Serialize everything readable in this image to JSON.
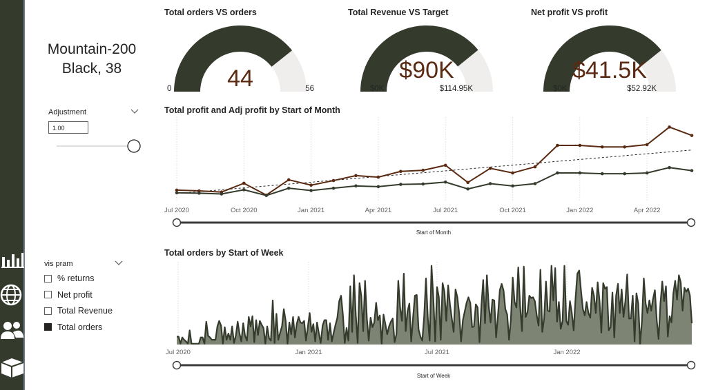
{
  "product": {
    "title_line1": "Mountain-200",
    "title_line2": "Black, 38"
  },
  "adjustment": {
    "label": "Adjustment",
    "value": "1.00",
    "slider_fraction": 1.0
  },
  "vis_param": {
    "label": "vis pram",
    "options": [
      {
        "label": "% returns",
        "checked": false
      },
      {
        "label": "Net profit",
        "checked": false
      },
      {
        "label": "Total Revenue",
        "checked": false
      },
      {
        "label": "Total orders",
        "checked": true
      }
    ]
  },
  "nav_icons": [
    "bar-chart-icon",
    "globe-icon",
    "users-icon",
    "box-icon"
  ],
  "colors": {
    "sidebar": "#343b2c",
    "dark_green": "#343b2c",
    "brown": "#5a2a12",
    "light_gray": "#efeeed",
    "area": "#7d8474"
  },
  "gauges": [
    {
      "title": "Total orders VS orders",
      "value": 44,
      "value_label": "44",
      "min": 0,
      "max": 56,
      "min_label": "0",
      "max_label": "56"
    },
    {
      "title": "Total Revenue VS Target",
      "value": 90,
      "value_label": "$90K",
      "min": 0,
      "max": 114.95,
      "min_label": "$0K",
      "max_label": "$114.95K"
    },
    {
      "title": "Net profit VS profit",
      "value": 41.5,
      "value_label": "$41.5K",
      "min": 0,
      "max": 52.92,
      "min_label": "$0K",
      "max_label": "$52.92K"
    }
  ],
  "chart_data": [
    {
      "type": "line",
      "title": "Total profit and Adj profit by Start of Month",
      "xlabel": "Start of Month",
      "ylabel": "",
      "x": [
        "2020-07",
        "2020-08",
        "2020-09",
        "2020-10",
        "2020-11",
        "2020-12",
        "2021-01",
        "2021-02",
        "2021-03",
        "2021-04",
        "2021-05",
        "2021-06",
        "2021-07",
        "2021-08",
        "2021-09",
        "2021-10",
        "2021-11",
        "2021-12",
        "2022-01",
        "2022-02",
        "2022-03",
        "2022-04",
        "2022-05",
        "2022-06"
      ],
      "x_ticks": [
        "Jul 2020",
        "Oct 2020",
        "Jan 2021",
        "Apr 2021",
        "Jul 2021",
        "Oct 2021",
        "Jan 2022",
        "Apr 2022"
      ],
      "series": [
        {
          "color": "#5a2a12",
          "values": [
            14.5,
            13.5,
            12,
            23.5,
            8,
            28,
            21,
            27,
            33.5,
            31.5,
            39,
            40.5,
            47,
            24.5,
            43,
            37,
            45,
            73,
            73,
            71,
            71,
            74,
            97,
            86
          ]
        },
        {
          "color": "#343b2c",
          "values": [
            11,
            10.5,
            9.5,
            15,
            7.5,
            17,
            14,
            17,
            20,
            19,
            22,
            22.5,
            25,
            16,
            23,
            20,
            23,
            37,
            37,
            36,
            36,
            37,
            44,
            40
          ]
        }
      ],
      "trend_line": {
        "dashed": true,
        "start": 10,
        "end": 67
      },
      "ylim": [
        0,
        110
      ],
      "grid": "vertical dotted"
    },
    {
      "type": "area",
      "title": "Total orders by Start of Week",
      "xlabel": "Start of Week",
      "ylabel": "",
      "x_ticks": [
        "Jul 2020",
        "Jan 2021",
        "Jul 2021",
        "Jan 2022"
      ],
      "values": [
        10,
        10,
        1,
        9,
        6,
        4,
        1,
        18,
        1,
        1,
        1,
        1,
        1,
        9,
        9,
        1,
        29,
        11,
        9,
        6,
        6,
        6,
        23,
        30,
        24,
        1,
        22,
        6,
        14,
        6,
        23,
        2,
        11,
        29,
        14,
        4,
        27,
        11,
        5,
        35,
        23,
        36,
        3,
        31,
        12,
        30,
        25,
        21,
        1,
        23,
        8,
        5,
        56,
        2,
        39,
        6,
        15,
        23,
        45,
        30,
        1,
        28,
        13,
        35,
        9,
        26,
        35,
        28,
        27,
        30,
        5,
        22,
        40,
        16,
        26,
        4,
        28,
        14,
        2,
        24,
        31,
        31,
        6,
        27,
        4,
        15,
        25,
        34,
        55,
        62,
        38,
        2,
        21,
        5,
        74,
        16,
        88,
        37,
        2,
        78,
        61,
        17,
        81,
        33,
        5,
        34,
        22,
        28,
        53,
        31,
        37,
        1,
        38,
        26,
        13,
        23,
        29,
        33,
        3,
        13,
        81,
        47,
        30,
        90,
        17,
        42,
        52,
        4,
        34,
        62,
        63,
        19,
        10,
        5,
        35,
        84,
        34,
        5,
        100,
        59,
        4,
        73,
        60,
        6,
        78,
        67,
        30,
        75,
        51,
        33,
        16,
        70,
        60,
        39,
        4,
        31,
        42,
        53,
        60,
        53,
        22,
        23,
        51,
        47,
        3,
        49,
        82,
        27,
        88,
        49,
        28,
        57,
        56,
        9,
        37,
        69,
        77,
        69,
        45,
        38,
        6,
        32,
        85,
        54,
        47,
        98,
        49,
        17,
        99,
        35,
        41,
        62,
        59,
        60,
        55,
        37,
        24,
        95,
        16,
        33,
        80,
        43,
        42,
        100,
        56,
        97,
        29,
        54,
        20,
        30,
        100,
        30,
        25,
        55,
        40,
        18,
        58,
        90,
        94,
        68,
        45,
        37,
        54,
        40,
        34,
        72,
        62,
        40,
        79,
        56,
        15,
        78,
        71,
        73,
        18,
        22,
        66,
        9,
        62,
        77,
        40,
        70,
        35,
        55,
        89,
        33,
        33,
        62,
        4,
        65,
        52,
        1,
        30,
        84,
        52,
        40,
        56,
        43,
        58,
        69,
        31,
        7,
        52,
        80,
        55,
        74,
        10,
        36,
        28,
        65,
        81,
        57,
        88,
        79,
        43,
        72,
        67,
        71,
        62,
        27
      ],
      "ylim": [
        0,
        105
      ]
    }
  ]
}
